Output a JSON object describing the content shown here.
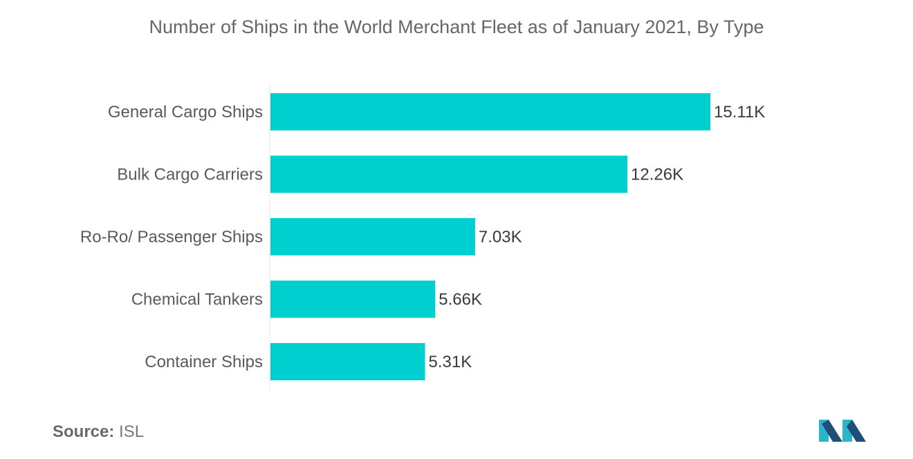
{
  "chart_data": {
    "type": "bar",
    "orientation": "horizontal",
    "title": "Number of Ships in the World Merchant Fleet as of January 2021, By Type",
    "categories": [
      "General Cargo Ships",
      "Bulk Cargo Carriers",
      "Ro-Ro/ Passenger Ships",
      "Chemical Tankers",
      "Container Ships"
    ],
    "values": [
      15110,
      12260,
      7030,
      5660,
      5310
    ],
    "value_labels": [
      "15.11K",
      "12.26K",
      "7.03K",
      "5.66K",
      "5.31K"
    ],
    "xlim": [
      0,
      15110
    ],
    "grid": false,
    "legend": "none",
    "bar_color": "#00CFCF"
  },
  "source": {
    "label": "Source:",
    "value": "ISL"
  },
  "logo": {
    "icon": "mordor-logo-icon",
    "colors": [
      "#2CB5C9",
      "#1F4E79"
    ]
  }
}
